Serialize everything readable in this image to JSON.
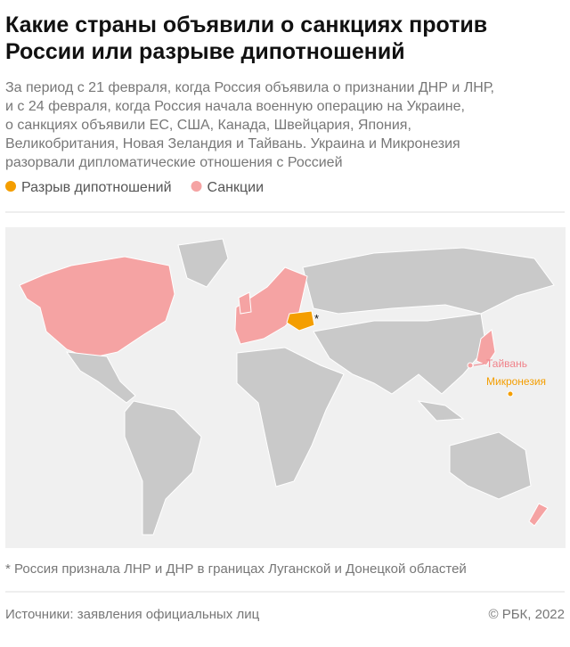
{
  "header": {
    "title": [
      "Какие страны объявили о санкциях против",
      "России или разрыве дипотношений"
    ],
    "subtitle": [
      "За период с 21 февраля, когда Россия объявила о признании ДНР и ЛНР,",
      "и с 24 февраля, когда Россия начала военную операцию на Украине,",
      "о санкциях объявили ЕС, США, Канада, Швейцария, Япония,",
      "Великобритания, Новая Зеландия и Тайвань. Украина и Микронезия",
      "разорвали дипломатические отношения с Россией"
    ]
  },
  "legend": [
    {
      "label": "Разрыв дипотношений",
      "color": "#f49e00"
    },
    {
      "label": "Санкции",
      "color": "#f5a3a3"
    }
  ],
  "map": {
    "labels": [
      {
        "text": "Тайвань",
        "color": "#f0828a"
      },
      {
        "text": "Микронезия",
        "color": "#f49e00"
      }
    ],
    "marker": "*"
  },
  "footnote": "* Россия признала ЛНР и ДНР в границах Луганской и Донецкой областей",
  "footer": {
    "source": "Источники: заявления официальных лиц",
    "copyright": "© РБК, 2022"
  }
}
